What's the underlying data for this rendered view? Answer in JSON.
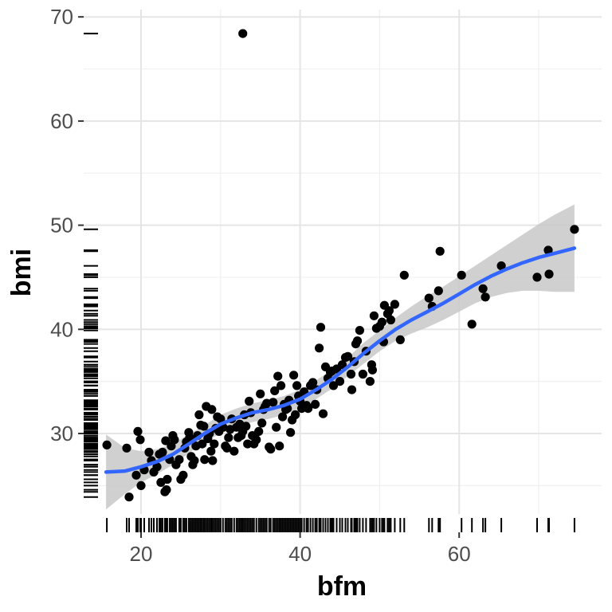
{
  "chart_data": {
    "type": "scatter",
    "title": "",
    "xlabel": "bfm",
    "ylabel": "bmi",
    "xlim": [
      15.6,
      74.5
    ],
    "ylim": [
      21.5,
      71
    ],
    "xticks": [
      20,
      40,
      60
    ],
    "yticks": [
      30,
      40,
      50,
      60,
      70
    ],
    "grid": true,
    "legend": "none",
    "colors": {
      "points": "#000000",
      "smooth_line": "#3366ff",
      "ribbon": "#c8c8c8",
      "grid_major": "#e5e5e5",
      "grid_minor": "#f0f0f0",
      "tick_label": "#4d4d4d",
      "rug": "#000000"
    },
    "points": [
      [
        15.7,
        28.9
      ],
      [
        18.2,
        28.6
      ],
      [
        18.5,
        23.9
      ],
      [
        19.4,
        26.0
      ],
      [
        19.6,
        30.2
      ],
      [
        19.9,
        29.4
      ],
      [
        20.0,
        25.0
      ],
      [
        20.4,
        26.5
      ],
      [
        21.0,
        28.2
      ],
      [
        21.3,
        27.4
      ],
      [
        21.6,
        26.3
      ],
      [
        22.0,
        26.8
      ],
      [
        22.3,
        28.0
      ],
      [
        22.5,
        25.3
      ],
      [
        22.7,
        28.2
      ],
      [
        23.0,
        24.4
      ],
      [
        23.2,
        24.6
      ],
      [
        23.3,
        25.6
      ],
      [
        23.1,
        29.3
      ],
      [
        23.6,
        27.5
      ],
      [
        23.8,
        28.8
      ],
      [
        24.0,
        29.8
      ],
      [
        24.2,
        29.4
      ],
      [
        24.4,
        27.0
      ],
      [
        24.8,
        27.5
      ],
      [
        25.0,
        25.6
      ],
      [
        25.3,
        26.0
      ],
      [
        25.5,
        28.6
      ],
      [
        25.7,
        29.2
      ],
      [
        26.0,
        30.1
      ],
      [
        26.1,
        29.6
      ],
      [
        26.3,
        27.8
      ],
      [
        26.5,
        27.0
      ],
      [
        26.7,
        27.4
      ],
      [
        26.9,
        28.8
      ],
      [
        27.1,
        29.8
      ],
      [
        27.3,
        31.8
      ],
      [
        27.5,
        30.8
      ],
      [
        27.7,
        29.0
      ],
      [
        27.9,
        30.7
      ],
      [
        28.0,
        27.5
      ],
      [
        28.2,
        32.6
      ],
      [
        28.4,
        29.5
      ],
      [
        28.6,
        30.0
      ],
      [
        28.8,
        28.3
      ],
      [
        28.9,
        32.3
      ],
      [
        29.0,
        27.4
      ],
      [
        29.2,
        29.0
      ],
      [
        29.4,
        30.5
      ],
      [
        29.6,
        31.6
      ],
      [
        29.8,
        30.2
      ],
      [
        30.0,
        31.4
      ],
      [
        30.3,
        30.6
      ],
      [
        30.6,
        28.8
      ],
      [
        30.8,
        28.6
      ],
      [
        31.0,
        29.6
      ],
      [
        31.2,
        30.4
      ],
      [
        31.4,
        31.4
      ],
      [
        31.7,
        28.3
      ],
      [
        32.0,
        30.6
      ],
      [
        32.2,
        29.6
      ],
      [
        32.4,
        30.9
      ],
      [
        32.6,
        29.8
      ],
      [
        32.8,
        30.2
      ],
      [
        32.8,
        68.4
      ],
      [
        33.0,
        31.8
      ],
      [
        33.2,
        30.7
      ],
      [
        33.4,
        29.0
      ],
      [
        33.6,
        33.1
      ],
      [
        33.8,
        32.0
      ],
      [
        34.0,
        29.8
      ],
      [
        34.2,
        29.0
      ],
      [
        34.5,
        29.4
      ],
      [
        34.8,
        30.2
      ],
      [
        35.0,
        33.8
      ],
      [
        35.2,
        31.0
      ],
      [
        35.4,
        32.3
      ],
      [
        35.6,
        32.6
      ],
      [
        35.8,
        32.9
      ],
      [
        36.1,
        28.7
      ],
      [
        36.3,
        28.5
      ],
      [
        36.6,
        33.0
      ],
      [
        36.8,
        34.1
      ],
      [
        37.0,
        30.6
      ],
      [
        37.2,
        35.5
      ],
      [
        37.4,
        28.8
      ],
      [
        37.6,
        34.6
      ],
      [
        37.8,
        31.6
      ],
      [
        38.0,
        32.8
      ],
      [
        38.2,
        32.3
      ],
      [
        38.4,
        32.4
      ],
      [
        38.6,
        33.2
      ],
      [
        38.8,
        30.1
      ],
      [
        39.0,
        31.3
      ],
      [
        39.2,
        35.6
      ],
      [
        39.4,
        31.8
      ],
      [
        39.6,
        34.6
      ],
      [
        39.8,
        33.6
      ],
      [
        40.0,
        33.1
      ],
      [
        40.2,
        32.4
      ],
      [
        40.5,
        34.0
      ],
      [
        40.8,
        32.7
      ],
      [
        41.0,
        32.4
      ],
      [
        41.3,
        34.6
      ],
      [
        41.6,
        34.9
      ],
      [
        41.9,
        32.8
      ],
      [
        42.1,
        34.2
      ],
      [
        42.4,
        38.2
      ],
      [
        42.6,
        40.2
      ],
      [
        42.9,
        31.9
      ],
      [
        43.2,
        36.4
      ],
      [
        43.5,
        35.3
      ],
      [
        43.8,
        35.9
      ],
      [
        44.2,
        34.6
      ],
      [
        44.6,
        36.2
      ],
      [
        45.0,
        35.0
      ],
      [
        45.3,
        36.6
      ],
      [
        45.7,
        37.3
      ],
      [
        46.0,
        37.4
      ],
      [
        46.4,
        35.7
      ],
      [
        46.8,
        36.9
      ],
      [
        47.2,
        38.9
      ],
      [
        47.5,
        39.9
      ],
      [
        47.9,
        35.7
      ],
      [
        48.3,
        37.9
      ],
      [
        48.8,
        35.0
      ],
      [
        49.1,
        36.1
      ],
      [
        49.3,
        41.3
      ],
      [
        49.6,
        40.1
      ],
      [
        50.0,
        40.3
      ],
      [
        50.3,
        40.7
      ],
      [
        50.6,
        42.3
      ],
      [
        51.0,
        41.5
      ],
      [
        51.4,
        40.9
      ],
      [
        51.9,
        42.4
      ],
      [
        52.6,
        39.0
      ],
      [
        53.1,
        45.2
      ],
      [
        56.2,
        43.0
      ],
      [
        56.6,
        42.2
      ],
      [
        57.4,
        43.7
      ],
      [
        57.6,
        47.5
      ],
      [
        60.3,
        45.2
      ],
      [
        61.6,
        40.5
      ],
      [
        63.0,
        43.9
      ],
      [
        63.3,
        43.1
      ],
      [
        65.3,
        46.1
      ],
      [
        69.8,
        45.0
      ],
      [
        71.2,
        47.6
      ],
      [
        71.3,
        45.3
      ],
      [
        74.5,
        49.6
      ],
      [
        49.0,
        36.6
      ],
      [
        50.5,
        38.8
      ],
      [
        51.2,
        41.8
      ],
      [
        44.0,
        36.0
      ],
      [
        46.5,
        34.2
      ],
      [
        47.0,
        38.6
      ]
    ],
    "smooth": {
      "x": [
        15.6,
        18,
        20,
        22,
        24,
        26,
        28,
        30,
        32,
        34,
        36,
        38,
        40,
        42,
        44,
        46,
        48,
        50,
        52,
        54,
        56,
        58,
        60,
        62,
        64,
        66,
        68,
        70,
        72,
        74.5
      ],
      "y": [
        26.3,
        26.4,
        26.8,
        27.3,
        28.0,
        29.0,
        30.0,
        30.9,
        31.5,
        32.0,
        32.3,
        32.7,
        33.3,
        34.2,
        35.2,
        36.4,
        37.7,
        38.9,
        40.0,
        40.9,
        41.7,
        42.5,
        43.4,
        44.3,
        45.1,
        45.8,
        46.4,
        46.9,
        47.3,
        47.8
      ],
      "lo": [
        22.7,
        24.2,
        25.3,
        26.1,
        27.0,
        28.1,
        29.2,
        30.0,
        30.6,
        31.1,
        31.4,
        31.8,
        32.4,
        33.3,
        34.3,
        35.5,
        36.7,
        37.9,
        38.9,
        39.6,
        40.2,
        40.9,
        41.7,
        42.5,
        43.1,
        43.5,
        43.7,
        43.7,
        43.6,
        43.6
      ],
      "hi": [
        29.9,
        28.6,
        28.3,
        28.5,
        29.0,
        29.9,
        30.8,
        31.8,
        32.4,
        32.9,
        33.2,
        33.6,
        34.2,
        35.1,
        36.1,
        37.3,
        38.7,
        39.9,
        41.1,
        42.2,
        43.2,
        44.1,
        45.1,
        46.1,
        47.1,
        48.1,
        49.1,
        50.1,
        51.0,
        52.0
      ]
    }
  }
}
